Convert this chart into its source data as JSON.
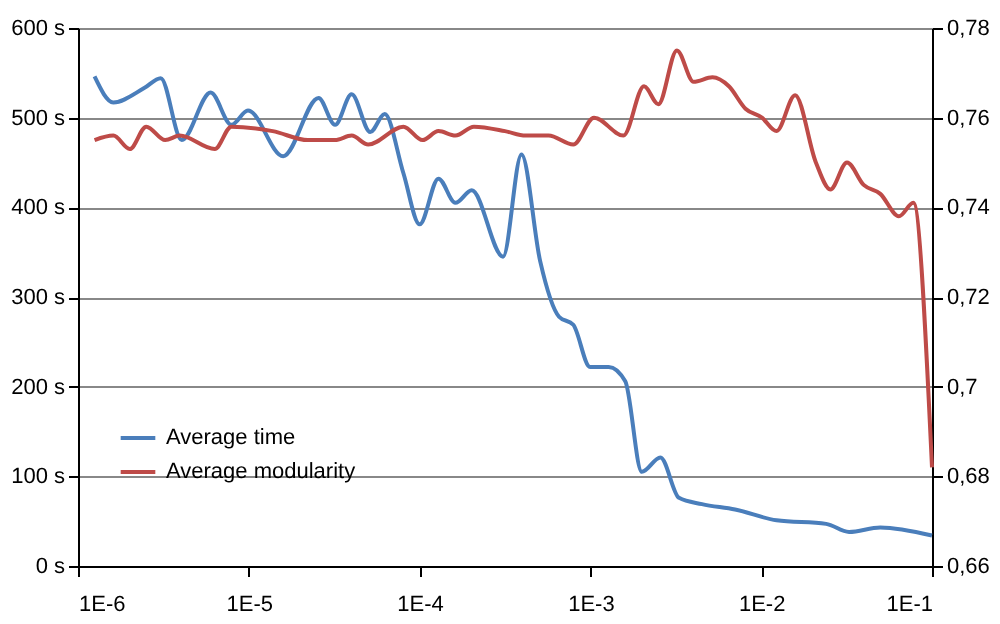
{
  "chart_data": {
    "type": "line",
    "legend": "bottom left",
    "grid": "y",
    "log": "x",
    "line_style": "solid",
    "marker": "none",
    "xlim": [
      1e-06,
      0.1
    ],
    "xticks": [
      {
        "value": 1e-06,
        "label": "1E-6"
      },
      {
        "value": 1e-05,
        "label": "1E-5"
      },
      {
        "value": 0.0001,
        "label": "1E-4"
      },
      {
        "value": 0.001,
        "label": "1E-3"
      },
      {
        "value": 0.01,
        "label": "1E-2"
      },
      {
        "value": 0.1,
        "label": "1E-1"
      }
    ],
    "ylim": [
      0,
      600
    ],
    "yticks": [
      {
        "value": 0,
        "label": "0 s"
      },
      {
        "value": 100,
        "label": "100 s"
      },
      {
        "value": 200,
        "label": "200 s"
      },
      {
        "value": 300,
        "label": "300 s"
      },
      {
        "value": 400,
        "label": "400 s"
      },
      {
        "value": 500,
        "label": "500 s"
      },
      {
        "value": 600,
        "label": "600 s"
      }
    ],
    "y2lim": [
      0.66,
      0.78
    ],
    "y2ticks": [
      {
        "value": 0.66,
        "label": "0,66"
      },
      {
        "value": 0.68,
        "label": "0,68"
      },
      {
        "value": 0.7,
        "label": "0,7"
      },
      {
        "value": 0.72,
        "label": "0,72"
      },
      {
        "value": 0.74,
        "label": "0,74"
      },
      {
        "value": 0.76,
        "label": "0,76"
      },
      {
        "value": 0.78,
        "label": "0,78"
      }
    ],
    "series": [
      {
        "name": "Average time",
        "color": "#4a7ebb",
        "x": [
          1.25e-06,
          1.61e-06,
          2.44e-06,
          3.05e-06,
          4.05e-06,
          5.98e-06,
          7.91e-06,
          9.89e-06,
          1.59e-05,
          2.56e-05,
          3.2e-05,
          4e-05,
          5.14e-05,
          6.25e-05,
          8.04e-05,
          0.0001,
          0.000129,
          0.000162,
          0.000202,
          0.000308,
          0.000395,
          0.000508,
          0.000655,
          0.000794,
          0.000995,
          0.00128,
          0.0016,
          0.002,
          0.00257,
          0.0033,
          0.0045,
          0.00703,
          0.0123,
          0.024,
          0.0327,
          0.0498,
          0.1
        ],
        "values": [
          546,
          517,
          533,
          544,
          475,
          528,
          492,
          508,
          457,
          522,
          492,
          526,
          484,
          504,
          438,
          381,
          432,
          405,
          419,
          345,
          459,
          340,
          278,
          269,
          222,
          222,
          206,
          105,
          121,
          76,
          69,
          63,
          51,
          47,
          38,
          43,
          34
        ]
      },
      {
        "name": "Average modularity",
        "color": "#be4b48",
        "axis": "y2",
        "x": [
          1.25e-06,
          1.61e-06,
          2.01e-06,
          2.51e-06,
          3.24e-06,
          3.94e-06,
          6.32e-06,
          7.91e-06,
          1.38e-05,
          2.22e-05,
          3.2e-05,
          4e-05,
          5e-05,
          8.04e-05,
          0.000104,
          0.000129,
          0.000162,
          0.000208,
          0.000316,
          0.000418,
          0.000569,
          0.000794,
          0.00105,
          0.00156,
          0.00206,
          0.0025,
          0.00321,
          0.00402,
          0.00518,
          0.00647,
          0.00809,
          0.0101,
          0.0123,
          0.0158,
          0.0209,
          0.0254,
          0.0318,
          0.0398,
          0.0498,
          0.064,
          0.0778,
          0.1
        ],
        "values": [
          0.755,
          0.756,
          0.753,
          0.758,
          0.755,
          0.756,
          0.753,
          0.758,
          0.757,
          0.755,
          0.755,
          0.756,
          0.754,
          0.758,
          0.755,
          0.757,
          0.756,
          0.758,
          0.757,
          0.756,
          0.756,
          0.754,
          0.76,
          0.756,
          0.767,
          0.763,
          0.775,
          0.768,
          0.769,
          0.767,
          0.762,
          0.76,
          0.757,
          0.765,
          0.75,
          0.744,
          0.75,
          0.745,
          0.743,
          0.738,
          0.741,
          0.682
        ]
      }
    ]
  }
}
